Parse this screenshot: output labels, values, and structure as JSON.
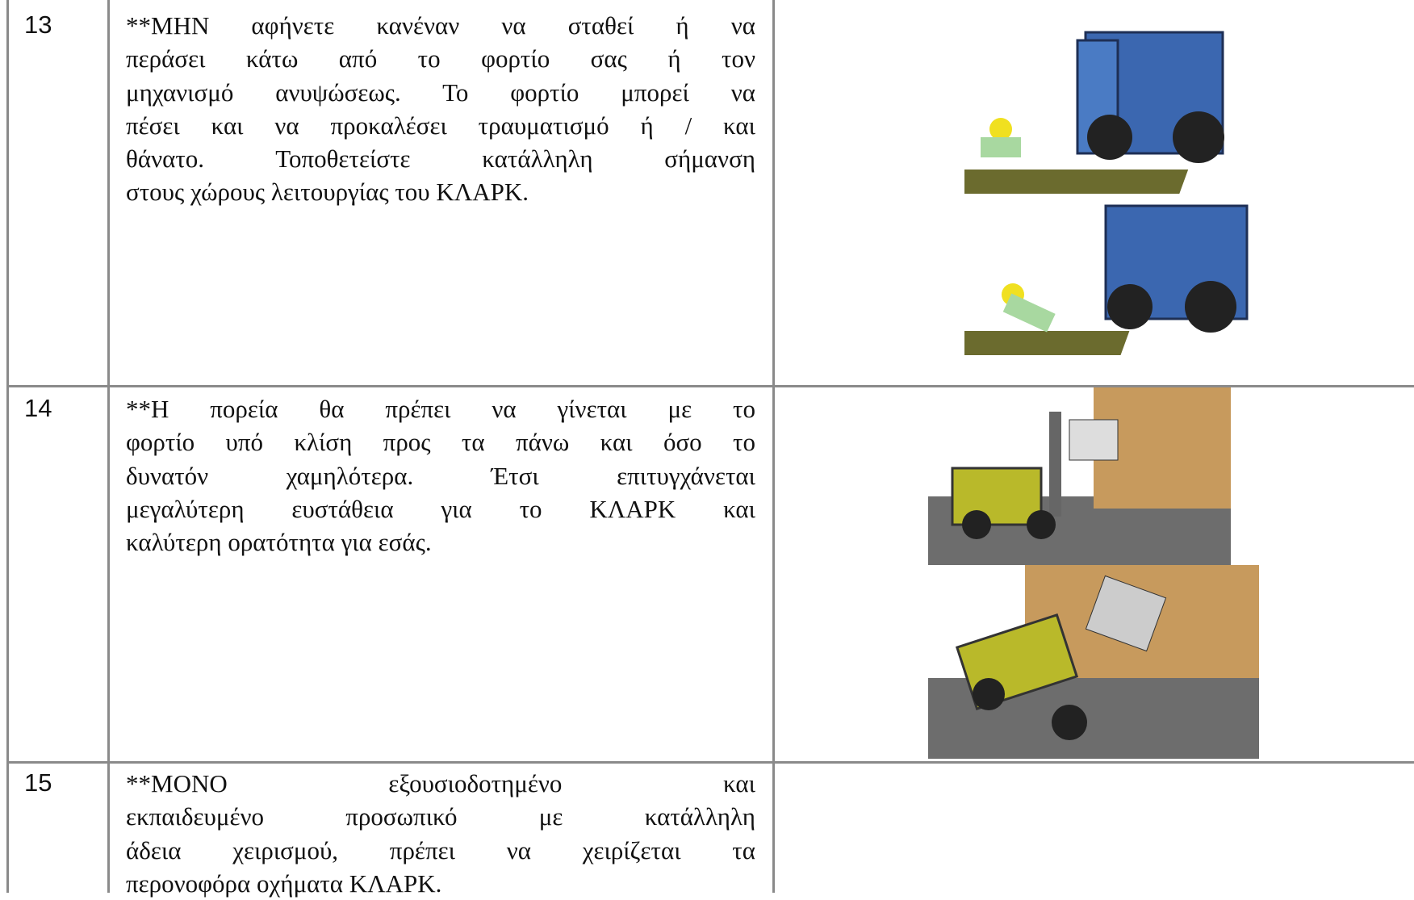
{
  "rows": [
    {
      "number": "13",
      "lines": [
        "**ΜΗΝ αφήνετε κανέναν να σταθεί ή να",
        "περάσει κάτω από το φορτίο σας ή τον",
        "μηχανισμό ανυψώσεως. Το φορτίο μπορεί να",
        "πέσει και να προκαλέσει τραυματισμό ή / και",
        "θάνατο. Τοποθετείστε κατάλληλη σήμανση",
        "στους χώρους λειτουργίας του ΚΛΑΡΚ."
      ]
    },
    {
      "number": "14",
      "lines": [
        "**Η πορεία θα πρέπει να γίνεται με το",
        "φορτίο υπό κλίση προς τα πάνω και όσο το",
        "δυνατόν χαμηλότερα. Έτσι επιτυγχάνεται",
        "μεγαλύτερη ευστάθεια για το ΚΛΑΡΚ και",
        "καλύτερη ορατότητα για εσάς."
      ]
    },
    {
      "number": "15",
      "lines": [
        "**ΜΟΝΟ εξουσιοδοτημένο και",
        "εκπαιδευμένο προσωπικό με κατάλληλη",
        "άδεια χειρισμού, πρέπει να χειρίζεται τα",
        "περονοφόρα οχήματα ΚΛΑΡΚ."
      ]
    }
  ]
}
